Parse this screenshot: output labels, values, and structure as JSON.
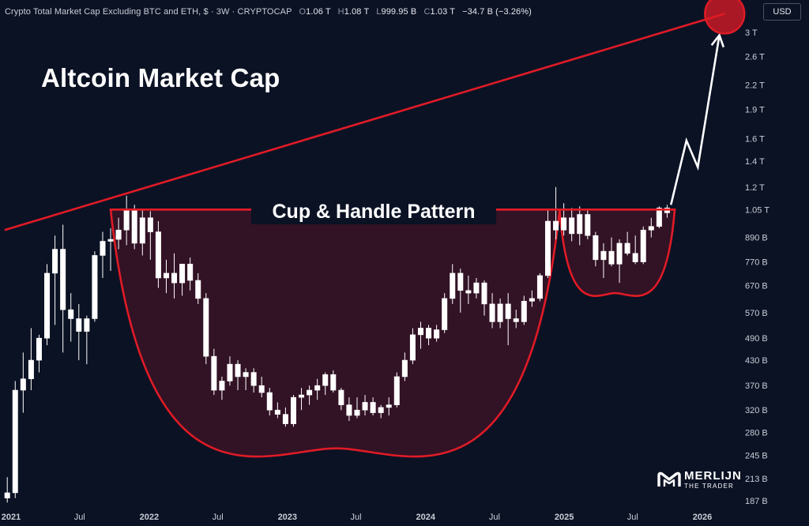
{
  "header": {
    "title": "Crypto Total Market Cap Excluding BTC and ETH, $ · 3W · CRYPTOCAP",
    "open_label": "O",
    "open": "1.06 T",
    "high_label": "H",
    "high": "1.08 T",
    "low_label": "L",
    "low": "999.95 B",
    "close_label": "C",
    "close": "1.03 T",
    "change": "−34.7 B (−3.26%)"
  },
  "currency_label": "USD",
  "brand": {
    "line1": "MERLIJN",
    "line2": "THE TRADER"
  },
  "colors": {
    "background": "#0b1224",
    "accent": "#e01b26",
    "cup_fill": "#3a1326",
    "candle": "#ffffff",
    "text": "#c9cdd6"
  },
  "chart_data": {
    "type": "candlestick",
    "title": "Altcoin Market Cap",
    "pattern_label": "Cup & Handle Pattern",
    "scale": "log",
    "ylim_billions": [
      180,
      3600
    ],
    "y_ticks": [
      {
        "label": "3 T",
        "value": 3000
      },
      {
        "label": "2.6 T",
        "value": 2600
      },
      {
        "label": "2.2 T",
        "value": 2200
      },
      {
        "label": "1.9 T",
        "value": 1900
      },
      {
        "label": "1.6 T",
        "value": 1600
      },
      {
        "label": "1.4 T",
        "value": 1400
      },
      {
        "label": "1.2 T",
        "value": 1200
      },
      {
        "label": "1.05 T",
        "value": 1050
      },
      {
        "label": "890 B",
        "value": 890
      },
      {
        "label": "770 B",
        "value": 770
      },
      {
        "label": "670 B",
        "value": 670
      },
      {
        "label": "570 B",
        "value": 570
      },
      {
        "label": "490 B",
        "value": 490
      },
      {
        "label": "430 B",
        "value": 430
      },
      {
        "label": "370 B",
        "value": 370
      },
      {
        "label": "320 B",
        "value": 320
      },
      {
        "label": "280 B",
        "value": 280
      },
      {
        "label": "245 B",
        "value": 245
      },
      {
        "label": "213 B",
        "value": 213
      },
      {
        "label": "187 B",
        "value": 187
      }
    ],
    "x_ticks": [
      {
        "label": "2021",
        "date": "2021-01-01",
        "bold": true
      },
      {
        "label": "Jul",
        "date": "2021-07-01",
        "bold": false
      },
      {
        "label": "2022",
        "date": "2022-01-01",
        "bold": true
      },
      {
        "label": "Jul",
        "date": "2022-07-01",
        "bold": false
      },
      {
        "label": "2023",
        "date": "2023-01-01",
        "bold": true
      },
      {
        "label": "Jul",
        "date": "2023-07-01",
        "bold": false
      },
      {
        "label": "2024",
        "date": "2024-01-01",
        "bold": true
      },
      {
        "label": "Jul",
        "date": "2024-07-01",
        "bold": false
      },
      {
        "label": "2025",
        "date": "2025-01-01",
        "bold": true
      },
      {
        "label": "Jul",
        "date": "2025-07-01",
        "bold": false
      },
      {
        "label": "2026",
        "date": "2026-01-01",
        "bold": true
      }
    ],
    "candles": [
      {
        "date": "2020-12-22",
        "o": 190,
        "h": 215,
        "l": 185,
        "c": 196
      },
      {
        "date": "2021-01-12",
        "o": 196,
        "h": 380,
        "l": 190,
        "c": 360
      },
      {
        "date": "2021-02-02",
        "o": 360,
        "h": 450,
        "l": 315,
        "c": 385
      },
      {
        "date": "2021-02-23",
        "o": 385,
        "h": 520,
        "l": 360,
        "c": 430
      },
      {
        "date": "2021-03-16",
        "o": 430,
        "h": 500,
        "l": 400,
        "c": 490
      },
      {
        "date": "2021-04-06",
        "o": 490,
        "h": 760,
        "l": 470,
        "c": 720
      },
      {
        "date": "2021-04-27",
        "o": 720,
        "h": 900,
        "l": 530,
        "c": 830
      },
      {
        "date": "2021-05-18",
        "o": 830,
        "h": 960,
        "l": 450,
        "c": 580
      },
      {
        "date": "2021-06-08",
        "o": 580,
        "h": 640,
        "l": 480,
        "c": 550
      },
      {
        "date": "2021-06-29",
        "o": 550,
        "h": 600,
        "l": 430,
        "c": 510
      },
      {
        "date": "2021-07-20",
        "o": 510,
        "h": 560,
        "l": 420,
        "c": 550
      },
      {
        "date": "2021-08-10",
        "o": 550,
        "h": 820,
        "l": 540,
        "c": 800
      },
      {
        "date": "2021-08-31",
        "o": 800,
        "h": 920,
        "l": 700,
        "c": 870
      },
      {
        "date": "2021-09-21",
        "o": 870,
        "h": 940,
        "l": 730,
        "c": 880
      },
      {
        "date": "2021-10-12",
        "o": 880,
        "h": 1000,
        "l": 830,
        "c": 930
      },
      {
        "date": "2021-11-02",
        "o": 930,
        "h": 1140,
        "l": 850,
        "c": 1050
      },
      {
        "date": "2021-11-23",
        "o": 1050,
        "h": 1080,
        "l": 830,
        "c": 860
      },
      {
        "date": "2021-12-14",
        "o": 860,
        "h": 1050,
        "l": 800,
        "c": 1000
      },
      {
        "date": "2022-01-04",
        "o": 1000,
        "h": 1040,
        "l": 780,
        "c": 920
      },
      {
        "date": "2022-01-25",
        "o": 920,
        "h": 980,
        "l": 660,
        "c": 700
      },
      {
        "date": "2022-02-15",
        "o": 700,
        "h": 780,
        "l": 640,
        "c": 720
      },
      {
        "date": "2022-03-08",
        "o": 720,
        "h": 810,
        "l": 620,
        "c": 680
      },
      {
        "date": "2022-03-29",
        "o": 680,
        "h": 760,
        "l": 630,
        "c": 760
      },
      {
        "date": "2022-04-19",
        "o": 760,
        "h": 790,
        "l": 650,
        "c": 690
      },
      {
        "date": "2022-05-10",
        "o": 690,
        "h": 720,
        "l": 600,
        "c": 620
      },
      {
        "date": "2022-05-31",
        "o": 620,
        "h": 640,
        "l": 420,
        "c": 440
      },
      {
        "date": "2022-06-21",
        "o": 440,
        "h": 460,
        "l": 350,
        "c": 360
      },
      {
        "date": "2022-07-12",
        "o": 360,
        "h": 390,
        "l": 340,
        "c": 380
      },
      {
        "date": "2022-08-02",
        "o": 380,
        "h": 440,
        "l": 370,
        "c": 420
      },
      {
        "date": "2022-08-23",
        "o": 420,
        "h": 430,
        "l": 360,
        "c": 390
      },
      {
        "date": "2022-09-13",
        "o": 390,
        "h": 410,
        "l": 360,
        "c": 400
      },
      {
        "date": "2022-10-04",
        "o": 400,
        "h": 410,
        "l": 355,
        "c": 370
      },
      {
        "date": "2022-10-25",
        "o": 370,
        "h": 390,
        "l": 345,
        "c": 355
      },
      {
        "date": "2022-11-15",
        "o": 355,
        "h": 365,
        "l": 310,
        "c": 320
      },
      {
        "date": "2022-12-06",
        "o": 320,
        "h": 335,
        "l": 305,
        "c": 312
      },
      {
        "date": "2022-12-27",
        "o": 312,
        "h": 325,
        "l": 290,
        "c": 295
      },
      {
        "date": "2023-01-17",
        "o": 295,
        "h": 350,
        "l": 290,
        "c": 345
      },
      {
        "date": "2023-02-07",
        "o": 345,
        "h": 365,
        "l": 320,
        "c": 350
      },
      {
        "date": "2023-02-28",
        "o": 350,
        "h": 370,
        "l": 330,
        "c": 360
      },
      {
        "date": "2023-03-21",
        "o": 360,
        "h": 385,
        "l": 340,
        "c": 370
      },
      {
        "date": "2023-04-11",
        "o": 370,
        "h": 400,
        "l": 350,
        "c": 395
      },
      {
        "date": "2023-05-02",
        "o": 395,
        "h": 405,
        "l": 355,
        "c": 360
      },
      {
        "date": "2023-05-23",
        "o": 360,
        "h": 365,
        "l": 320,
        "c": 330
      },
      {
        "date": "2023-06-13",
        "o": 330,
        "h": 345,
        "l": 300,
        "c": 310
      },
      {
        "date": "2023-07-04",
        "o": 310,
        "h": 345,
        "l": 305,
        "c": 320
      },
      {
        "date": "2023-07-25",
        "o": 320,
        "h": 350,
        "l": 310,
        "c": 335
      },
      {
        "date": "2023-08-15",
        "o": 335,
        "h": 345,
        "l": 310,
        "c": 315
      },
      {
        "date": "2023-09-05",
        "o": 315,
        "h": 330,
        "l": 305,
        "c": 325
      },
      {
        "date": "2023-09-26",
        "o": 325,
        "h": 345,
        "l": 310,
        "c": 330
      },
      {
        "date": "2023-10-17",
        "o": 330,
        "h": 400,
        "l": 325,
        "c": 390
      },
      {
        "date": "2023-11-07",
        "o": 390,
        "h": 450,
        "l": 380,
        "c": 430
      },
      {
        "date": "2023-11-28",
        "o": 430,
        "h": 520,
        "l": 420,
        "c": 500
      },
      {
        "date": "2023-12-19",
        "o": 500,
        "h": 540,
        "l": 460,
        "c": 520
      },
      {
        "date": "2024-01-09",
        "o": 520,
        "h": 530,
        "l": 470,
        "c": 490
      },
      {
        "date": "2024-01-30",
        "o": 490,
        "h": 530,
        "l": 480,
        "c": 515
      },
      {
        "date": "2024-02-20",
        "o": 515,
        "h": 640,
        "l": 505,
        "c": 620
      },
      {
        "date": "2024-03-12",
        "o": 620,
        "h": 760,
        "l": 600,
        "c": 720
      },
      {
        "date": "2024-04-02",
        "o": 720,
        "h": 740,
        "l": 570,
        "c": 650
      },
      {
        "date": "2024-04-23",
        "o": 650,
        "h": 710,
        "l": 600,
        "c": 640
      },
      {
        "date": "2024-05-14",
        "o": 640,
        "h": 700,
        "l": 620,
        "c": 680
      },
      {
        "date": "2024-06-04",
        "o": 680,
        "h": 690,
        "l": 560,
        "c": 600
      },
      {
        "date": "2024-06-25",
        "o": 600,
        "h": 640,
        "l": 520,
        "c": 540
      },
      {
        "date": "2024-07-16",
        "o": 540,
        "h": 620,
        "l": 520,
        "c": 600
      },
      {
        "date": "2024-08-06",
        "o": 600,
        "h": 640,
        "l": 470,
        "c": 550
      },
      {
        "date": "2024-08-27",
        "o": 550,
        "h": 580,
        "l": 520,
        "c": 540
      },
      {
        "date": "2024-09-17",
        "o": 540,
        "h": 630,
        "l": 530,
        "c": 610
      },
      {
        "date": "2024-10-08",
        "o": 610,
        "h": 650,
        "l": 590,
        "c": 620
      },
      {
        "date": "2024-10-29",
        "o": 620,
        "h": 720,
        "l": 610,
        "c": 710
      },
      {
        "date": "2024-11-19",
        "o": 710,
        "h": 1050,
        "l": 700,
        "c": 980
      },
      {
        "date": "2024-12-10",
        "o": 980,
        "h": 1200,
        "l": 880,
        "c": 930
      },
      {
        "date": "2024-12-31",
        "o": 930,
        "h": 1090,
        "l": 900,
        "c": 1000
      },
      {
        "date": "2025-01-21",
        "o": 1000,
        "h": 1060,
        "l": 870,
        "c": 910
      },
      {
        "date": "2025-02-11",
        "o": 910,
        "h": 1070,
        "l": 850,
        "c": 1020
      },
      {
        "date": "2025-03-04",
        "o": 1020,
        "h": 1050,
        "l": 880,
        "c": 900
      },
      {
        "date": "2025-03-25",
        "o": 900,
        "h": 920,
        "l": 750,
        "c": 780
      },
      {
        "date": "2025-04-15",
        "o": 780,
        "h": 860,
        "l": 700,
        "c": 820
      },
      {
        "date": "2025-05-06",
        "o": 820,
        "h": 890,
        "l": 750,
        "c": 760
      },
      {
        "date": "2025-05-27",
        "o": 760,
        "h": 880,
        "l": 680,
        "c": 860
      },
      {
        "date": "2025-06-17",
        "o": 860,
        "h": 920,
        "l": 800,
        "c": 810
      },
      {
        "date": "2025-07-08",
        "o": 810,
        "h": 900,
        "l": 760,
        "c": 770
      },
      {
        "date": "2025-07-29",
        "o": 770,
        "h": 950,
        "l": 760,
        "c": 930
      },
      {
        "date": "2025-08-19",
        "o": 930,
        "h": 1000,
        "l": 890,
        "c": 950
      },
      {
        "date": "2025-09-09",
        "o": 950,
        "h": 1070,
        "l": 940,
        "c": 1060
      },
      {
        "date": "2025-09-30",
        "o": 1060,
        "h": 1080,
        "l": 1000,
        "c": 1030
      }
    ],
    "annotations": {
      "resistance_line": [
        {
          "date": "2020-12-15",
          "value": 930
        },
        {
          "date": "2026-03-01",
          "value": 3350
        }
      ],
      "neckline": {
        "from": "2021-09-21",
        "to": "2025-10-20",
        "value": 1050
      },
      "cup": {
        "from": "2021-09-21",
        "to": "2024-12-20",
        "bottom_date": "2023-05-10",
        "bottom_value": 255
      },
      "handle": {
        "from": "2024-12-20",
        "to": "2025-10-20",
        "bottom_date": "2025-05-15",
        "bottom_value": 640
      },
      "projection": [
        {
          "date": "2025-10-10",
          "value": 1080
        },
        {
          "date": "2025-11-20",
          "value": 1580
        },
        {
          "date": "2025-12-20",
          "value": 1350
        },
        {
          "date": "2026-02-15",
          "value": 2950
        }
      ],
      "target": {
        "date": "2026-03-01",
        "value": 3350
      }
    }
  }
}
